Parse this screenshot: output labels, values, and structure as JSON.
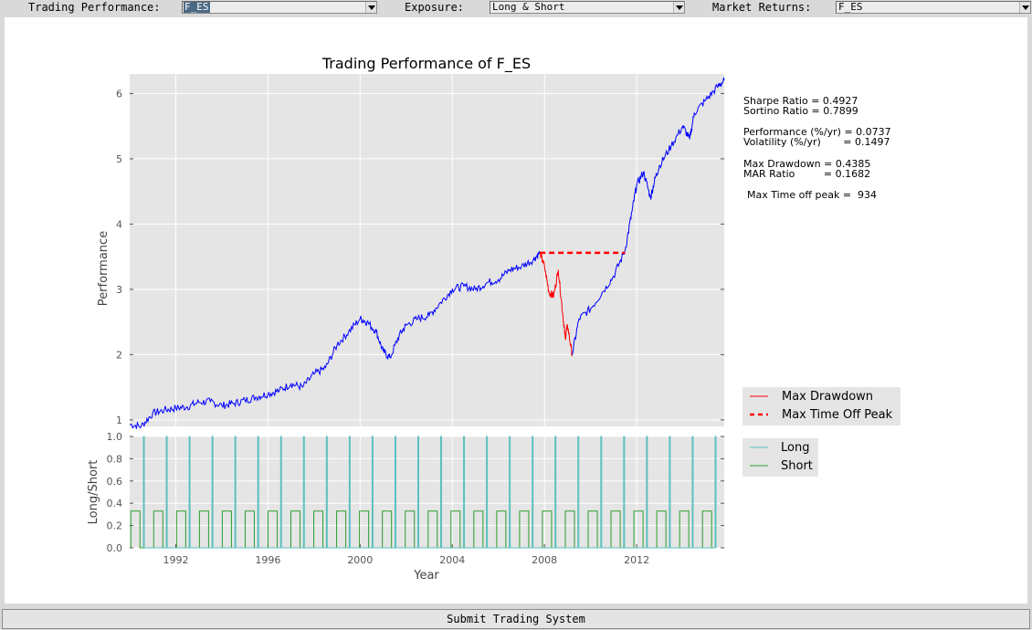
{
  "toolbar": {
    "trading_performance_label": "Trading Performance:",
    "trading_performance_value": "F_ES",
    "exposure_label": "Exposure:",
    "exposure_value": "Long & Short",
    "market_returns_label": "Market Returns:",
    "market_returns_value": "F_ES"
  },
  "stats": {
    "sharpe": "Sharpe Ratio = 0.4927",
    "sortino": "Sortino Ratio = 0.7899",
    "performance": "Performance (%/yr) = 0.0737",
    "volatility": "Volatility (%/yr)       = 0.1497",
    "max_drawdown": "Max Drawdown = 0.4385",
    "mar_ratio": "MAR Ratio         = 0.1682",
    "time_off_peak": "Max Time off peak =  934"
  },
  "submit_label": "Submit Trading System",
  "colors": {
    "plot_bg": "#e5e5e5",
    "performance_line": "#0000ff",
    "drawdown": "#ff0000",
    "long": "#5bc0be",
    "short": "#2a9d2a"
  },
  "chart_data": [
    {
      "type": "line",
      "title": "Trading Performance of F_ES",
      "xlabel": "",
      "ylabel": "Performance",
      "xlim": [
        1990.0,
        2015.8
      ],
      "ylim": [
        0.9,
        6.3
      ],
      "yticks": [
        1,
        2,
        3,
        4,
        5,
        6
      ],
      "grid": true,
      "legend_position": "right",
      "legend": [
        "Max Drawdown",
        "Max Time Off Peak"
      ],
      "series": [
        {
          "name": "",
          "x": [
            1990.0,
            1990.5,
            1991.0,
            1991.5,
            1992.0,
            1992.5,
            1993.0,
            1993.5,
            1994.0,
            1994.5,
            1995.0,
            1995.5,
            1996.0,
            1996.5,
            1997.0,
            1997.5,
            1998.0,
            1998.5,
            1999.0,
            1999.5,
            2000.0,
            2000.3,
            2000.7,
            2001.0,
            2001.3,
            2001.7,
            2002.0,
            2002.5,
            2003.0,
            2003.5,
            2004.0,
            2004.5,
            2005.0,
            2005.5,
            2006.0,
            2006.5,
            2007.0,
            2007.5,
            2007.8
          ],
          "y": [
            0.93,
            0.9,
            1.1,
            1.15,
            1.18,
            1.2,
            1.27,
            1.28,
            1.22,
            1.25,
            1.3,
            1.35,
            1.4,
            1.45,
            1.55,
            1.5,
            1.7,
            1.8,
            2.15,
            2.35,
            2.55,
            2.5,
            2.35,
            2.05,
            1.95,
            2.3,
            2.45,
            2.55,
            2.6,
            2.8,
            3.0,
            3.05,
            3.0,
            3.1,
            3.15,
            3.3,
            3.35,
            3.45,
            3.56
          ]
        },
        {
          "name": "Max Drawdown",
          "x": [
            2007.8,
            2008.0,
            2008.2,
            2008.4,
            2008.6,
            2008.8,
            2008.9,
            2009.0,
            2009.2
          ],
          "y": [
            3.56,
            3.35,
            2.95,
            2.9,
            3.3,
            2.6,
            2.25,
            2.45,
            2.0
          ]
        },
        {
          "name": "",
          "x": [
            2009.2,
            2009.5,
            2010.0,
            2010.5,
            2011.0,
            2011.5,
            2011.8,
            2012.0,
            2012.3,
            2012.6,
            2012.8,
            2013.0,
            2013.5,
            2014.0,
            2014.3,
            2014.5,
            2015.0,
            2015.5,
            2015.8
          ],
          "y": [
            2.0,
            2.55,
            2.7,
            2.95,
            3.2,
            3.6,
            4.2,
            4.6,
            4.8,
            4.4,
            4.7,
            4.9,
            5.2,
            5.5,
            5.3,
            5.7,
            5.9,
            6.1,
            6.2
          ]
        },
        {
          "name": "Max Time Off Peak",
          "x": [
            2007.8,
            2011.5
          ],
          "y": [
            3.56,
            3.56
          ]
        }
      ]
    },
    {
      "type": "line",
      "title": "",
      "xlabel": "Year",
      "ylabel": "Long/Short",
      "xlim": [
        1990.0,
        2015.8
      ],
      "ylim": [
        0.0,
        1.0
      ],
      "yticks": [
        0.0,
        0.2,
        0.4,
        0.6,
        0.8,
        1.0
      ],
      "xticks": [
        1992,
        1996,
        2000,
        2004,
        2008,
        2012
      ],
      "grid": true,
      "legend_position": "right",
      "legend": [
        "Long",
        "Short"
      ],
      "long_level": 1.0,
      "short_level": 0.33,
      "cycles": 26
    }
  ]
}
